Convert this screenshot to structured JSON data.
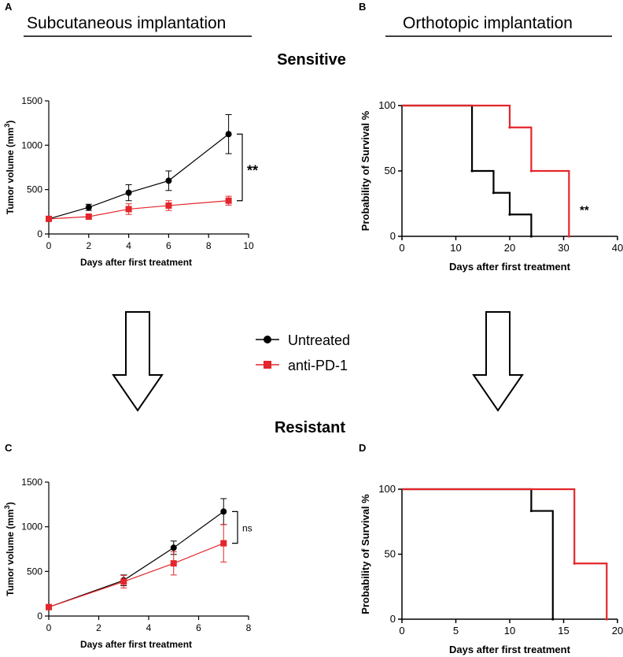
{
  "colors": {
    "untreated": "#000000",
    "treated": "#e3262b",
    "arrow": "#000000"
  },
  "header": {
    "left": {
      "letter": "A",
      "title": "Subcutaneous implantation"
    },
    "right": {
      "letter": "B",
      "title": "Orthotopic implantation"
    }
  },
  "sections": {
    "sensitive": "Sensitive",
    "resistant": "Resistant"
  },
  "legend": {
    "untreated": "Untreated",
    "treated": "anti-PD-1"
  },
  "chart_data": [
    {
      "id": "A",
      "type": "line",
      "panel": "A",
      "xlabel": "Days after first treatment",
      "ylabel": "Tumor volume (mm",
      "ylabel_sup": "3",
      "ylabel_end": ")",
      "xlim": [
        0,
        10
      ],
      "ylim": [
        0,
        1500
      ],
      "xticks": [
        0,
        2,
        4,
        6,
        8,
        10
      ],
      "yticks": [
        0,
        500,
        1000,
        1500
      ],
      "significance": "**",
      "series": [
        {
          "name": "Untreated",
          "x": [
            0,
            2,
            4,
            6,
            9
          ],
          "y": [
            170,
            300,
            465,
            600,
            1125
          ],
          "err": [
            20,
            35,
            90,
            110,
            220
          ]
        },
        {
          "name": "anti-PD-1",
          "x": [
            0,
            2,
            4,
            6,
            9
          ],
          "y": [
            170,
            195,
            280,
            320,
            375
          ],
          "err": [
            20,
            30,
            60,
            55,
            50
          ]
        }
      ]
    },
    {
      "id": "B",
      "type": "line",
      "panel": "B",
      "xlabel": "Days after first treatment",
      "ylabel": "Probability of Survival %",
      "xlim": [
        0,
        40
      ],
      "ylim": [
        0,
        100
      ],
      "xticks": [
        0,
        10,
        20,
        30,
        40
      ],
      "yticks": [
        0,
        50,
        100
      ],
      "significance": "**",
      "series": [
        {
          "name": "Untreated",
          "x": [
            0,
            13,
            13,
            17,
            17,
            20,
            20,
            24,
            24
          ],
          "y": [
            100,
            100,
            50,
            50,
            33.3,
            33.3,
            16.7,
            16.7,
            0
          ]
        },
        {
          "name": "anti-PD-1",
          "x": [
            0,
            20,
            20,
            24,
            24,
            31,
            31
          ],
          "y": [
            100,
            100,
            83.3,
            83.3,
            50,
            50,
            0
          ]
        }
      ]
    },
    {
      "id": "C",
      "type": "line",
      "panel": "C",
      "xlabel": "Days after first treatment",
      "ylabel": "Tumor volume (mm",
      "ylabel_sup": "3",
      "ylabel_end": ")",
      "xlim": [
        0,
        8
      ],
      "ylim": [
        0,
        1500
      ],
      "xticks": [
        0,
        2,
        4,
        6,
        8
      ],
      "yticks": [
        0,
        500,
        1000,
        1500
      ],
      "significance": "ns",
      "series": [
        {
          "name": "Untreated",
          "x": [
            0,
            3,
            5,
            7
          ],
          "y": [
            100,
            400,
            765,
            1170
          ],
          "err": [
            15,
            60,
            75,
            145
          ]
        },
        {
          "name": "anti-PD-1",
          "x": [
            0,
            3,
            5,
            7
          ],
          "y": [
            100,
            385,
            590,
            815
          ],
          "err": [
            15,
            70,
            130,
            210
          ]
        }
      ]
    },
    {
      "id": "D",
      "type": "line",
      "panel": "D",
      "xlabel": "Days after first treatment",
      "ylabel": "Probability of Survival %",
      "xlim": [
        0,
        20
      ],
      "ylim": [
        0,
        100
      ],
      "xticks": [
        0,
        5,
        10,
        15,
        20
      ],
      "yticks": [
        0,
        50,
        100
      ],
      "significance": "",
      "series": [
        {
          "name": "Untreated",
          "x": [
            0,
            12,
            12,
            14,
            14
          ],
          "y": [
            100,
            100,
            83.3,
            83.3,
            0
          ]
        },
        {
          "name": "anti-PD-1",
          "x": [
            0,
            16,
            16,
            19,
            19
          ],
          "y": [
            100,
            100,
            42.9,
            42.9,
            0
          ]
        }
      ]
    }
  ]
}
